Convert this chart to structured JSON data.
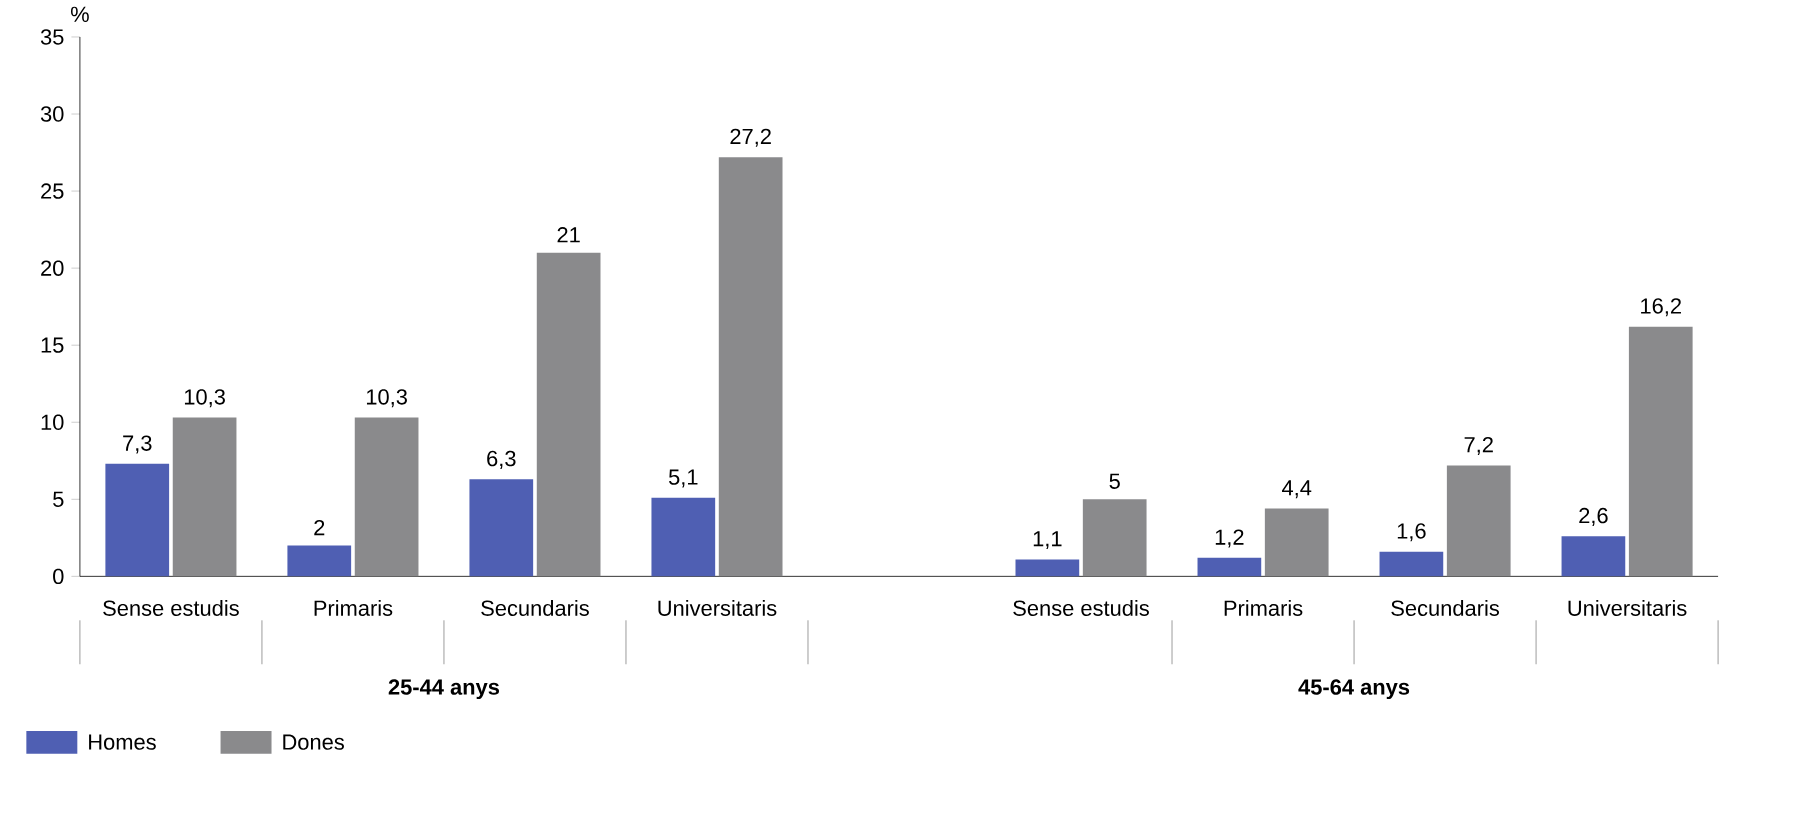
{
  "chart_data": {
    "type": "bar",
    "ylabel": "%",
    "categories": [
      "Sense estudis",
      "Primaris",
      "Secundaris",
      "Universitaris",
      null,
      "Sense estudis",
      "Primaris",
      "Secundaris",
      "Universitaris"
    ],
    "series": [
      {
        "name": "Homes",
        "color": "#4f5fb3",
        "values": [
          7.3,
          2,
          6.3,
          5.1,
          null,
          1.1,
          1.2,
          1.6,
          2.6
        ],
        "value_labels": [
          "7,3",
          "2",
          "6,3",
          "5,1",
          null,
          "1,1",
          "1,2",
          "1,6",
          "2,6"
        ]
      },
      {
        "name": "Dones",
        "color": "#8a8a8c",
        "values": [
          10.3,
          10.3,
          21,
          27.2,
          null,
          5,
          4.4,
          7.2,
          16.2
        ],
        "value_labels": [
          "10,3",
          "10,3",
          "21",
          "27,2",
          null,
          "5",
          "4,4",
          "7,2",
          "16,2"
        ]
      }
    ],
    "ylim": [
      0,
      35
    ],
    "yticks": [
      0,
      5,
      10,
      15,
      20,
      25,
      30,
      35
    ],
    "grid": false,
    "legend": "bottom left",
    "annotations": [
      "25-44 anys",
      "45-64 anys"
    ]
  }
}
